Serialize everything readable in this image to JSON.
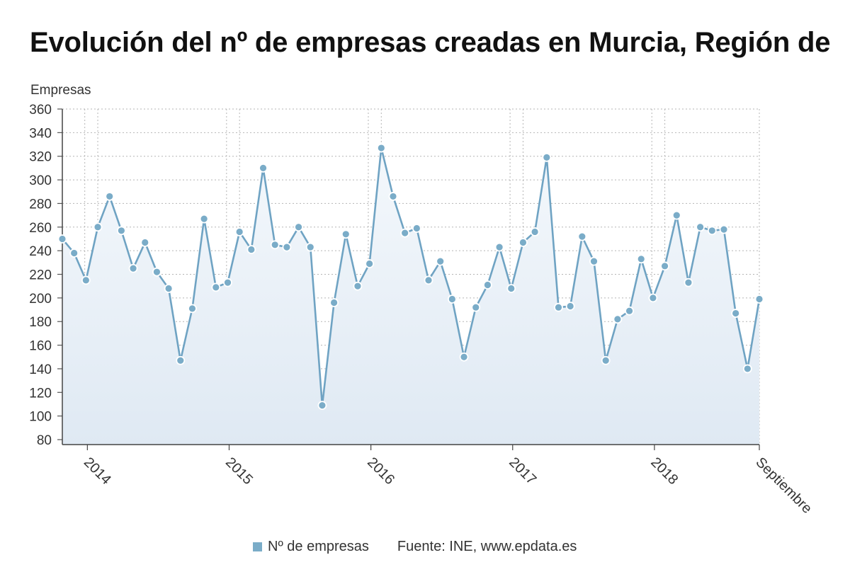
{
  "title": "Evolución del nº de empresas creadas en Murcia, Región de",
  "legend": {
    "series_label": "Nº de empresas",
    "source": "Fuente: INE, www.epdata.es"
  },
  "colors": {
    "line": "#6fa3c3",
    "marker": "#7aacc8",
    "marker_stroke": "#ffffff",
    "grid": "#b5b5b5",
    "area_top": "#f4f8fc",
    "area_bottom": "#dfe9f3"
  },
  "chart_data": {
    "type": "line",
    "title": "Evolución del nº de empresas creadas en Murcia, Región de",
    "ylabel": "Empresas",
    "xlabel": "",
    "ylim": [
      80,
      360
    ],
    "yticks": [
      80,
      100,
      120,
      140,
      160,
      180,
      200,
      220,
      240,
      260,
      280,
      300,
      320,
      340,
      360
    ],
    "x_tick_labels": [
      "2014",
      "2015",
      "2016",
      "2017",
      "2018",
      "Septiembre"
    ],
    "grid": true,
    "series": [
      {
        "name": "Nº de empresas",
        "values": [
          250,
          238,
          215,
          260,
          286,
          257,
          225,
          247,
          222,
          208,
          147,
          191,
          267,
          209,
          213,
          256,
          241,
          310,
          245,
          243,
          260,
          243,
          109,
          196,
          254,
          210,
          229,
          327,
          286,
          255,
          259,
          215,
          231,
          199,
          150,
          192,
          211,
          243,
          208,
          247,
          256,
          319,
          192,
          193,
          252,
          231,
          147,
          182,
          189,
          233,
          200,
          227,
          270,
          213,
          260,
          257,
          258,
          187,
          140,
          199
        ]
      }
    ]
  }
}
